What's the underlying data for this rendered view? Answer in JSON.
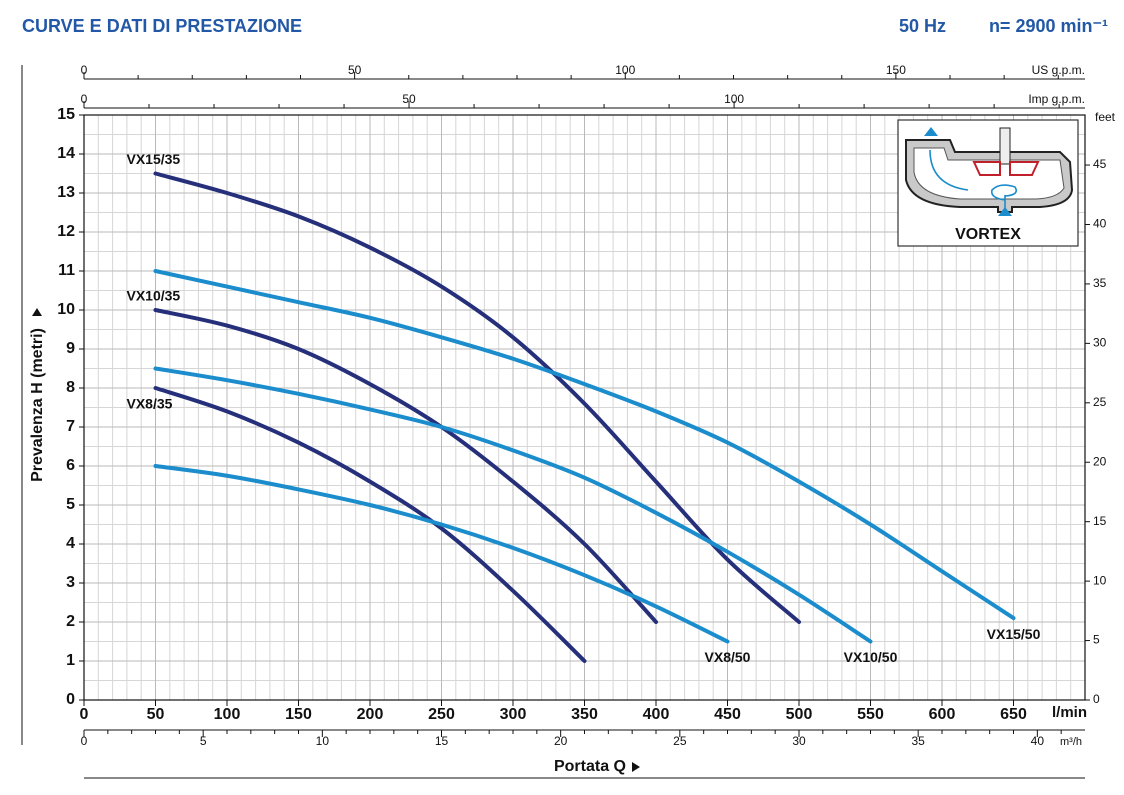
{
  "chart_data": {
    "type": "line",
    "title": "CURVE E DATI DI PRESTAZIONE",
    "frequency": "50 Hz",
    "speed": "n= 2900 min⁻¹",
    "x_label": "Portata Q",
    "y_label": "Prevalenza H (metri)",
    "x_unit": "l/min",
    "inset_label": "VORTEX",
    "xlim": [
      0,
      700
    ],
    "xticks": [
      0,
      50,
      100,
      150,
      200,
      250,
      300,
      350,
      400,
      450,
      500,
      550,
      600,
      650
    ],
    "ylim": [
      0,
      15
    ],
    "yticks": [
      0,
      1,
      2,
      3,
      4,
      5,
      6,
      7,
      8,
      9,
      10,
      11,
      12,
      13,
      14,
      15
    ],
    "grid": true,
    "minor_grid": {
      "x": 10,
      "y": 0.5
    },
    "x_us_gpm": {
      "label": "US g.p.m.",
      "lim": [
        0,
        184.94
      ],
      "ticks": [
        0,
        50,
        100,
        150
      ],
      "minor_ticks": [
        10,
        20,
        30,
        40,
        60,
        70,
        80,
        90,
        110,
        120,
        130,
        140,
        160,
        170,
        180
      ]
    },
    "x_imp_gpm": {
      "label": "Imp g.p.m.",
      "lim": [
        0,
        153.98
      ],
      "ticks": [
        0,
        50,
        100
      ],
      "minor_ticks": [
        10,
        20,
        30,
        40,
        60,
        70,
        80,
        90,
        110,
        120,
        130,
        140,
        150
      ]
    },
    "x_m3h": {
      "label": "m³/h",
      "lim": [
        0,
        42
      ],
      "ticks": [
        0,
        5,
        10,
        15,
        20,
        25,
        30,
        35,
        40
      ],
      "minor_ticks": [
        1,
        2,
        3,
        4,
        6,
        7,
        8,
        9,
        11,
        12,
        13,
        14,
        16,
        17,
        18,
        19,
        21,
        22,
        23,
        24,
        26,
        27,
        28,
        29,
        31,
        32,
        33,
        34,
        36,
        37,
        38,
        39,
        41
      ]
    },
    "y_feet": {
      "label": "feet",
      "lim": [
        0,
        49.21
      ],
      "ticks": [
        0,
        5,
        10,
        15,
        20,
        25,
        30,
        35,
        40,
        45
      ]
    },
    "series": [
      {
        "name": "VX15/35",
        "color": "#26307a",
        "label_at": "start",
        "label_side": "above",
        "x": [
          50,
          100,
          150,
          200,
          250,
          300,
          350,
          400,
          450,
          500
        ],
        "values": [
          13.5,
          13.0,
          12.4,
          11.6,
          10.6,
          9.3,
          7.6,
          5.6,
          3.6,
          2.0
        ]
      },
      {
        "name": "VX15/50",
        "color": "#1b8ccc",
        "label_at": "end",
        "label_side": "below",
        "x": [
          50,
          100,
          150,
          200,
          250,
          300,
          350,
          400,
          450,
          500,
          550,
          600,
          650
        ],
        "values": [
          11.0,
          10.6,
          10.2,
          9.8,
          9.3,
          8.75,
          8.1,
          7.4,
          6.6,
          5.6,
          4.5,
          3.3,
          2.1
        ]
      },
      {
        "name": "VX10/35",
        "color": "#26307a",
        "label_at": "start",
        "label_side": "above",
        "x": [
          50,
          100,
          150,
          200,
          250,
          300,
          350,
          400
        ],
        "values": [
          10.0,
          9.6,
          9.0,
          8.1,
          7.0,
          5.6,
          4.0,
          2.0
        ]
      },
      {
        "name": "VX10/50",
        "color": "#1b8ccc",
        "label_at": "end",
        "label_side": "below",
        "x": [
          50,
          100,
          150,
          200,
          250,
          300,
          350,
          400,
          450,
          500,
          550
        ],
        "values": [
          8.5,
          8.2,
          7.85,
          7.45,
          7.0,
          6.4,
          5.7,
          4.8,
          3.8,
          2.7,
          1.5
        ]
      },
      {
        "name": "VX8/35",
        "color": "#26307a",
        "label_at": "start",
        "label_side": "below",
        "x": [
          50,
          100,
          150,
          200,
          250,
          300,
          350
        ],
        "values": [
          8.0,
          7.4,
          6.6,
          5.6,
          4.4,
          2.8,
          1.0
        ]
      },
      {
        "name": "VX8/50",
        "color": "#1b8ccc",
        "label_at": "end",
        "label_side": "below",
        "x": [
          50,
          100,
          150,
          200,
          250,
          300,
          350,
          400,
          450
        ],
        "values": [
          6.0,
          5.75,
          5.4,
          5.0,
          4.5,
          3.9,
          3.2,
          2.4,
          1.5
        ]
      }
    ]
  }
}
